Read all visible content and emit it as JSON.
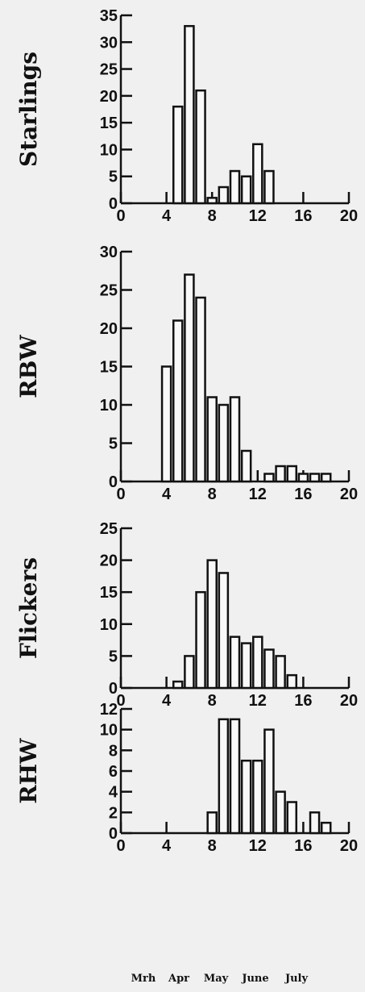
{
  "chart_data": [
    {
      "type": "bar",
      "ylabel": "Starlings",
      "xlim": [
        0,
        20
      ],
      "ylim": [
        0,
        35
      ],
      "xticks": [
        "0",
        "4",
        "8",
        "12",
        "16",
        "20"
      ],
      "yticks": [
        "0",
        "5",
        "10",
        "15",
        "20",
        "25",
        "30",
        "35"
      ],
      "x": [
        5,
        6,
        7,
        8,
        9,
        10,
        11,
        12,
        13
      ],
      "values": [
        18,
        33,
        21,
        1,
        3,
        6,
        5,
        11,
        6
      ]
    },
    {
      "type": "bar",
      "ylabel": "RBW",
      "xlim": [
        0,
        20
      ],
      "ylim": [
        0,
        30
      ],
      "xticks": [
        "0",
        "4",
        "8",
        "12",
        "16",
        "20"
      ],
      "yticks": [
        "0",
        "5",
        "10",
        "15",
        "20",
        "25",
        "30"
      ],
      "x": [
        4,
        5,
        6,
        7,
        8,
        9,
        10,
        11,
        12,
        13,
        14,
        15,
        16,
        17,
        18
      ],
      "values": [
        15,
        21,
        27,
        24,
        11,
        10,
        11,
        4,
        0,
        1,
        2,
        2,
        1,
        1,
        1
      ]
    },
    {
      "type": "bar",
      "ylabel": "Flickers",
      "xlim": [
        0,
        20
      ],
      "ylim": [
        0,
        25
      ],
      "xticks": [
        "0",
        "4",
        "8",
        "12",
        "16",
        "20"
      ],
      "yticks": [
        "0",
        "5",
        "10",
        "15",
        "20",
        "25"
      ],
      "x": [
        5,
        6,
        7,
        8,
        9,
        10,
        11,
        12,
        13,
        14,
        15
      ],
      "values": [
        1,
        5,
        15,
        20,
        18,
        8,
        7,
        8,
        6,
        5,
        2
      ]
    },
    {
      "type": "bar",
      "ylabel": "RHW",
      "xlim": [
        0,
        20
      ],
      "ylim": [
        0,
        12
      ],
      "xticks": [
        "0",
        "4",
        "8",
        "12",
        "16",
        "20"
      ],
      "yticks": [
        "0",
        "2",
        "4",
        "6",
        "8",
        "10",
        "12"
      ],
      "x": [
        8,
        9,
        10,
        11,
        12,
        13,
        14,
        15,
        16,
        17,
        18
      ],
      "values": [
        2,
        11,
        11,
        7,
        7,
        10,
        4,
        3,
        0,
        2,
        1
      ]
    }
  ],
  "month_axis": [
    "Mrh",
    "Apr",
    "May",
    "June",
    "July"
  ]
}
